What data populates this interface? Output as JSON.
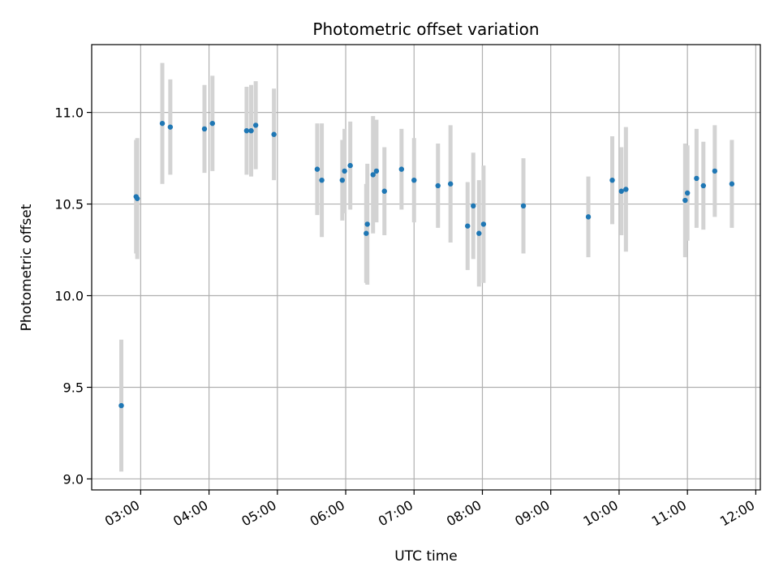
{
  "chart_data": {
    "type": "scatter",
    "title": "Photometric offset variation",
    "xlabel": "UTC time",
    "ylabel": "Photometric offset",
    "x_tick_labels": [
      "03:00",
      "04:00",
      "05:00",
      "06:00",
      "07:00",
      "08:00",
      "09:00",
      "10:00",
      "11:00",
      "12:00"
    ],
    "y_tick_labels": [
      "9.0",
      "9.5",
      "10.0",
      "10.5",
      "11.0"
    ],
    "y_ticks": [
      9.0,
      9.5,
      10.0,
      10.5,
      11.0
    ],
    "xlim": [
      "02:17",
      "12:04"
    ],
    "ylim": [
      8.94,
      11.37
    ],
    "grid": true,
    "colors": {
      "marker": "#1f77b4",
      "errorbar": "#d3d3d3",
      "grid": "#b0b0b0"
    },
    "series": [
      {
        "points": [
          {
            "x": "02:43",
            "y": 9.4,
            "err": 0.36
          },
          {
            "x": "02:56",
            "y": 10.54,
            "err": 0.31
          },
          {
            "x": "02:57",
            "y": 10.53,
            "err": 0.33
          },
          {
            "x": "03:19",
            "y": 10.94,
            "err": 0.33
          },
          {
            "x": "03:26",
            "y": 10.92,
            "err": 0.26
          },
          {
            "x": "03:56",
            "y": 10.91,
            "err": 0.24
          },
          {
            "x": "04:03",
            "y": 10.94,
            "err": 0.26
          },
          {
            "x": "04:33",
            "y": 10.9,
            "err": 0.24
          },
          {
            "x": "04:37",
            "y": 10.9,
            "err": 0.25
          },
          {
            "x": "04:41",
            "y": 10.93,
            "err": 0.24
          },
          {
            "x": "04:57",
            "y": 10.88,
            "err": 0.25
          },
          {
            "x": "05:35",
            "y": 10.69,
            "err": 0.25
          },
          {
            "x": "05:39",
            "y": 10.63,
            "err": 0.31
          },
          {
            "x": "05:57",
            "y": 10.63,
            "err": 0.22
          },
          {
            "x": "05:59",
            "y": 10.68,
            "err": 0.23
          },
          {
            "x": "06:04",
            "y": 10.71,
            "err": 0.24
          },
          {
            "x": "06:18",
            "y": 10.34,
            "err": 0.27
          },
          {
            "x": "06:19",
            "y": 10.39,
            "err": 0.33
          },
          {
            "x": "06:24",
            "y": 10.66,
            "err": 0.32
          },
          {
            "x": "06:27",
            "y": 10.68,
            "err": 0.28
          },
          {
            "x": "06:34",
            "y": 10.57,
            "err": 0.24
          },
          {
            "x": "06:49",
            "y": 10.69,
            "err": 0.22
          },
          {
            "x": "07:00",
            "y": 10.63,
            "err": 0.23
          },
          {
            "x": "07:21",
            "y": 10.6,
            "err": 0.23
          },
          {
            "x": "07:32",
            "y": 10.61,
            "err": 0.32
          },
          {
            "x": "07:47",
            "y": 10.38,
            "err": 0.24
          },
          {
            "x": "07:52",
            "y": 10.49,
            "err": 0.29
          },
          {
            "x": "07:57",
            "y": 10.34,
            "err": 0.29
          },
          {
            "x": "08:01",
            "y": 10.39,
            "err": 0.32
          },
          {
            "x": "08:36",
            "y": 10.49,
            "err": 0.26
          },
          {
            "x": "09:33",
            "y": 10.43,
            "err": 0.22
          },
          {
            "x": "09:54",
            "y": 10.63,
            "err": 0.24
          },
          {
            "x": "10:02",
            "y": 10.57,
            "err": 0.24
          },
          {
            "x": "10:06",
            "y": 10.58,
            "err": 0.34
          },
          {
            "x": "10:58",
            "y": 10.52,
            "err": 0.31
          },
          {
            "x": "11:00",
            "y": 10.56,
            "err": 0.26
          },
          {
            "x": "11:08",
            "y": 10.64,
            "err": 0.27
          },
          {
            "x": "11:14",
            "y": 10.6,
            "err": 0.24
          },
          {
            "x": "11:24",
            "y": 10.68,
            "err": 0.25
          },
          {
            "x": "11:39",
            "y": 10.61,
            "err": 0.24
          }
        ]
      }
    ]
  }
}
